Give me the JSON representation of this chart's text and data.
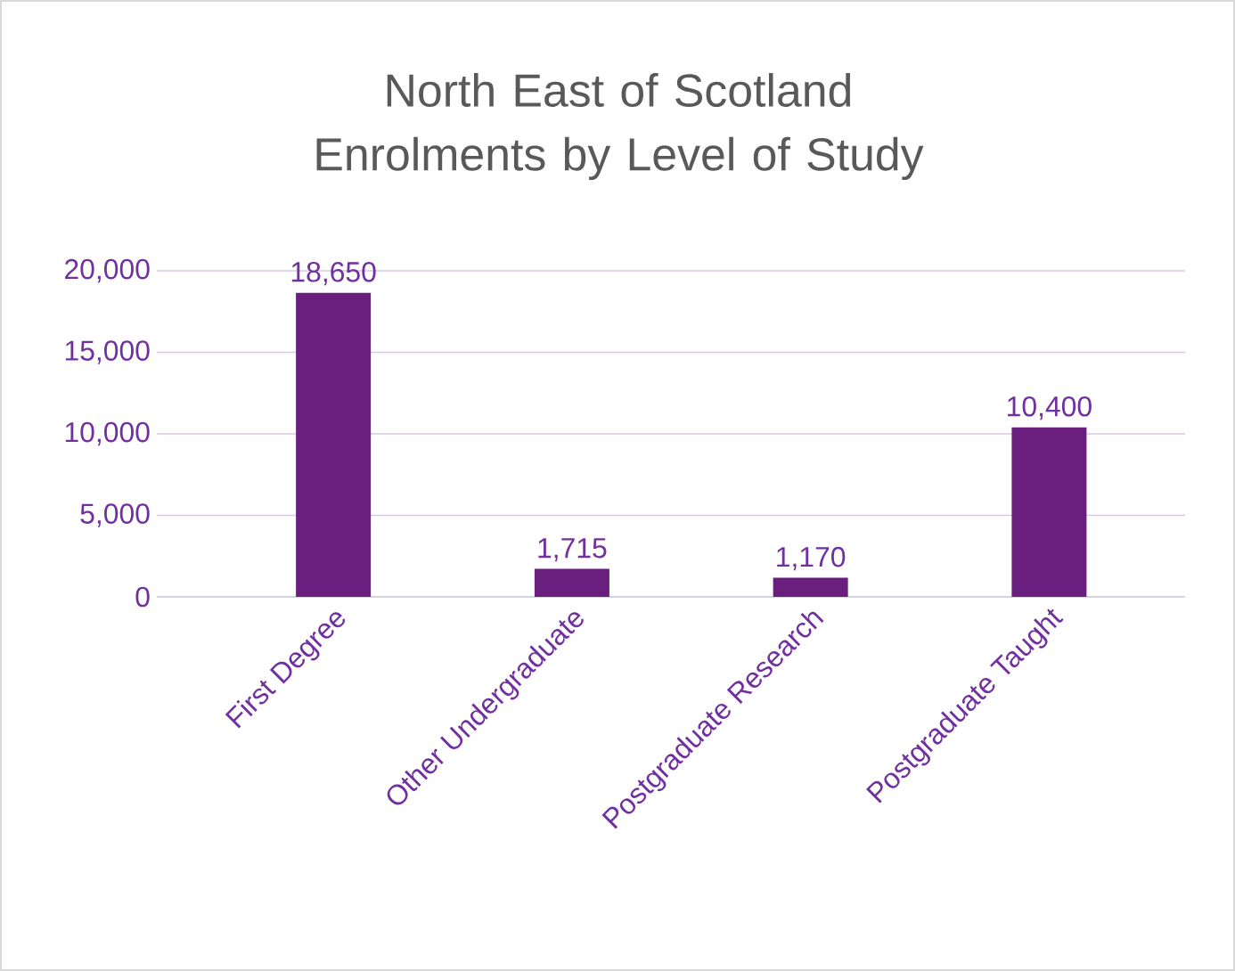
{
  "chart_data": {
    "type": "bar",
    "title": "North East of Scotland Enrolments by Level of Study",
    "categories": [
      "First Degree",
      "Other Undergraduate",
      "Postgraduate Research",
      "Postgraduate Taught"
    ],
    "values": [
      18650,
      1715,
      1170,
      10400
    ],
    "value_labels": [
      "18,650",
      "1,715",
      "1,170",
      "10,400"
    ],
    "color": "#6a1f7f",
    "ylim": [
      0,
      20000
    ],
    "yticks": [
      {
        "value": 0,
        "label": "0"
      },
      {
        "value": 5000,
        "label": "5,000"
      },
      {
        "value": 10000,
        "label": "10,000"
      },
      {
        "value": 15000,
        "label": "15,000"
      },
      {
        "value": 20000,
        "label": "20,000"
      }
    ],
    "grid": "y"
  }
}
